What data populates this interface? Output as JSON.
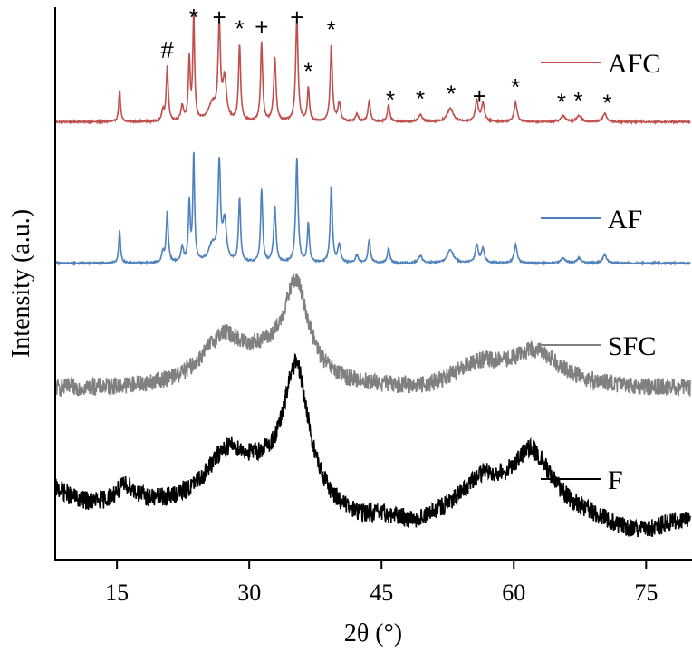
{
  "chart_data": {
    "type": "line",
    "xlabel": "2θ (°)",
    "ylabel": "Intensity (a.u.)",
    "xlim": [
      8,
      80
    ],
    "xticks": [
      15,
      30,
      45,
      60,
      75
    ],
    "x_tick_labels": [
      "15",
      "30",
      "45",
      "60",
      "75"
    ],
    "grid": false,
    "legend_position": "right, beside each curve",
    "series": [
      {
        "name": "AFC",
        "color": "#c0504d",
        "baseline": 0.04,
        "noise": 0.006,
        "peaks": [
          {
            "x": 15.3,
            "h": 0.26,
            "w": 0.12
          },
          {
            "x": 20.2,
            "h": 0.08,
            "w": 0.15
          },
          {
            "x": 20.7,
            "h": 0.45,
            "w": 0.14
          },
          {
            "x": 22.4,
            "h": 0.12,
            "w": 0.18
          },
          {
            "x": 23.2,
            "h": 0.5,
            "w": 0.12
          },
          {
            "x": 23.7,
            "h": 0.88,
            "w": 0.12
          },
          {
            "x": 25.8,
            "h": 0.14,
            "w": 0.5
          },
          {
            "x": 26.6,
            "h": 0.76,
            "w": 0.16
          },
          {
            "x": 27.2,
            "h": 0.33,
            "w": 0.25
          },
          {
            "x": 28.9,
            "h": 0.62,
            "w": 0.14
          },
          {
            "x": 31.4,
            "h": 0.64,
            "w": 0.14
          },
          {
            "x": 32.9,
            "h": 0.52,
            "w": 0.16
          },
          {
            "x": 35.4,
            "h": 0.85,
            "w": 0.16
          },
          {
            "x": 36.7,
            "h": 0.27,
            "w": 0.14
          },
          {
            "x": 39.3,
            "h": 0.62,
            "w": 0.15
          },
          {
            "x": 40.2,
            "h": 0.15,
            "w": 0.18
          },
          {
            "x": 42.2,
            "h": 0.06,
            "w": 0.2
          },
          {
            "x": 43.6,
            "h": 0.17,
            "w": 0.16
          },
          {
            "x": 45.8,
            "h": 0.14,
            "w": 0.16
          },
          {
            "x": 49.4,
            "h": 0.06,
            "w": 0.25
          },
          {
            "x": 52.8,
            "h": 0.11,
            "w": 0.4
          },
          {
            "x": 55.8,
            "h": 0.17,
            "w": 0.2
          },
          {
            "x": 56.5,
            "h": 0.15,
            "w": 0.2
          },
          {
            "x": 60.2,
            "h": 0.16,
            "w": 0.2
          },
          {
            "x": 65.6,
            "h": 0.05,
            "w": 0.3
          },
          {
            "x": 67.4,
            "h": 0.05,
            "w": 0.3
          },
          {
            "x": 70.3,
            "h": 0.07,
            "w": 0.25
          }
        ]
      },
      {
        "name": "AF",
        "color": "#4f81bd",
        "baseline": 0.04,
        "noise": 0.006,
        "peaks": [
          {
            "x": 15.3,
            "h": 0.26,
            "w": 0.12
          },
          {
            "x": 20.2,
            "h": 0.08,
            "w": 0.15
          },
          {
            "x": 20.7,
            "h": 0.42,
            "w": 0.14
          },
          {
            "x": 22.4,
            "h": 0.12,
            "w": 0.18
          },
          {
            "x": 23.2,
            "h": 0.48,
            "w": 0.12
          },
          {
            "x": 23.7,
            "h": 0.88,
            "w": 0.12
          },
          {
            "x": 25.8,
            "h": 0.14,
            "w": 0.5
          },
          {
            "x": 26.6,
            "h": 0.78,
            "w": 0.16
          },
          {
            "x": 27.2,
            "h": 0.33,
            "w": 0.25
          },
          {
            "x": 28.9,
            "h": 0.52,
            "w": 0.14
          },
          {
            "x": 31.4,
            "h": 0.6,
            "w": 0.14
          },
          {
            "x": 32.9,
            "h": 0.46,
            "w": 0.16
          },
          {
            "x": 35.4,
            "h": 0.85,
            "w": 0.16
          },
          {
            "x": 36.7,
            "h": 0.32,
            "w": 0.14
          },
          {
            "x": 39.3,
            "h": 0.62,
            "w": 0.15
          },
          {
            "x": 40.2,
            "h": 0.15,
            "w": 0.18
          },
          {
            "x": 42.2,
            "h": 0.06,
            "w": 0.2
          },
          {
            "x": 43.6,
            "h": 0.19,
            "w": 0.16
          },
          {
            "x": 45.8,
            "h": 0.12,
            "w": 0.16
          },
          {
            "x": 49.4,
            "h": 0.06,
            "w": 0.25
          },
          {
            "x": 52.8,
            "h": 0.11,
            "w": 0.4
          },
          {
            "x": 55.8,
            "h": 0.15,
            "w": 0.2
          },
          {
            "x": 56.5,
            "h": 0.12,
            "w": 0.2
          },
          {
            "x": 60.2,
            "h": 0.15,
            "w": 0.2
          },
          {
            "x": 65.6,
            "h": 0.04,
            "w": 0.3
          },
          {
            "x": 67.4,
            "h": 0.04,
            "w": 0.3
          },
          {
            "x": 70.3,
            "h": 0.07,
            "w": 0.25
          }
        ]
      },
      {
        "name": "SFC",
        "color": "#808080",
        "baseline": 0.04,
        "noise": 0.04,
        "peaks": [
          {
            "x": 27.0,
            "h": 0.22,
            "w": 3.0
          },
          {
            "x": 35.3,
            "h": 0.45,
            "w": 1.8
          },
          {
            "x": 31.5,
            "h": 0.08,
            "w": 2.5
          },
          {
            "x": 50.0,
            "h": -0.02,
            "w": 4.0
          },
          {
            "x": 56.0,
            "h": 0.1,
            "w": 3.5
          },
          {
            "x": 62.5,
            "h": 0.16,
            "w": 3.5
          }
        ]
      },
      {
        "name": "F",
        "color": "#000000",
        "baseline": 0.22,
        "noise": 0.04,
        "peaks": [
          {
            "x": 8.0,
            "h": 0.08,
            "w": 2.0
          },
          {
            "x": 16.0,
            "h": 0.08,
            "w": 1.5
          },
          {
            "x": 27.5,
            "h": 0.22,
            "w": 3.0
          },
          {
            "x": 35.3,
            "h": 0.58,
            "w": 1.8
          },
          {
            "x": 31.5,
            "h": 0.08,
            "w": 2.5
          },
          {
            "x": 42.0,
            "h": -0.05,
            "w": 4.0
          },
          {
            "x": 49.0,
            "h": -0.06,
            "w": 3.0
          },
          {
            "x": 56.5,
            "h": 0.12,
            "w": 2.5
          },
          {
            "x": 62.0,
            "h": 0.25,
            "w": 2.8
          },
          {
            "x": 74.0,
            "h": -0.1,
            "w": 5.0
          }
        ]
      }
    ],
    "annotations": [
      {
        "series": "AFC",
        "x": 20.7,
        "text": "#"
      },
      {
        "series": "AFC",
        "x": 23.7,
        "text": "*"
      },
      {
        "series": "AFC",
        "x": 26.6,
        "text": "+"
      },
      {
        "series": "AFC",
        "x": 28.9,
        "text": "*"
      },
      {
        "series": "AFC",
        "x": 31.4,
        "text": "+"
      },
      {
        "series": "AFC",
        "x": 35.4,
        "text": "+"
      },
      {
        "series": "AFC",
        "x": 36.7,
        "text": "*"
      },
      {
        "series": "AFC",
        "x": 39.3,
        "text": "*"
      },
      {
        "series": "AFC",
        "x": 46.0,
        "text": "*"
      },
      {
        "series": "AFC",
        "x": 49.4,
        "text": "*"
      },
      {
        "series": "AFC",
        "x": 52.9,
        "text": "*"
      },
      {
        "series": "AFC",
        "x": 56.1,
        "text": "+"
      },
      {
        "series": "AFC",
        "x": 60.2,
        "text": "*"
      },
      {
        "series": "AFC",
        "x": 65.4,
        "text": "*"
      },
      {
        "series": "AFC",
        "x": 67.3,
        "text": "*"
      },
      {
        "series": "AFC",
        "x": 70.6,
        "text": "*"
      }
    ]
  }
}
